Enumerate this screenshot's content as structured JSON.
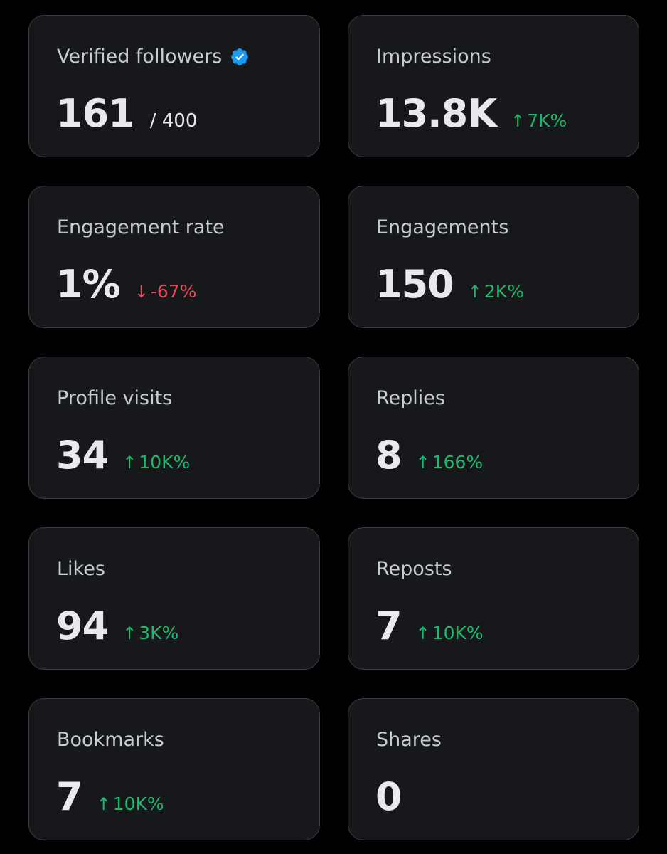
{
  "colors": {
    "background": "#000000",
    "card": "#16181c",
    "card_border": "#3a3d42",
    "label": "#c8cbd0",
    "value": "#e7e9ea",
    "positive": "#1db969",
    "negative": "#f0485a",
    "verified_badge": "#1d9bf0"
  },
  "cards": [
    {
      "label": "Verified followers",
      "value": "161",
      "suffix": "/ 400",
      "icon": "verified-badge-icon"
    },
    {
      "label": "Impressions",
      "value": "13.8K",
      "change": {
        "direction": "up",
        "arrow": "↑",
        "text": "7K%"
      }
    },
    {
      "label": "Engagement rate",
      "value": "1%",
      "change": {
        "direction": "down",
        "arrow": "↓",
        "text": "-67%"
      }
    },
    {
      "label": "Engagements",
      "value": "150",
      "change": {
        "direction": "up",
        "arrow": "↑",
        "text": "2K%"
      }
    },
    {
      "label": "Profile visits",
      "value": "34",
      "change": {
        "direction": "up",
        "arrow": "↑",
        "text": "10K%"
      }
    },
    {
      "label": "Replies",
      "value": "8",
      "change": {
        "direction": "up",
        "arrow": "↑",
        "text": "166%"
      }
    },
    {
      "label": "Likes",
      "value": "94",
      "change": {
        "direction": "up",
        "arrow": "↑",
        "text": "3K%"
      }
    },
    {
      "label": "Reposts",
      "value": "7",
      "change": {
        "direction": "up",
        "arrow": "↑",
        "text": "10K%"
      }
    },
    {
      "label": "Bookmarks",
      "value": "7",
      "change": {
        "direction": "up",
        "arrow": "↑",
        "text": "10K%"
      }
    },
    {
      "label": "Shares",
      "value": "0"
    }
  ]
}
